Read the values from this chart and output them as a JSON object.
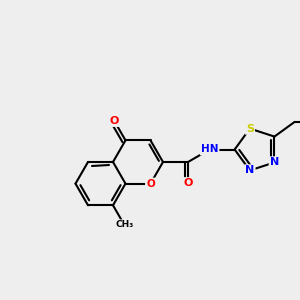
{
  "bg_color": "#f0f0f0",
  "atom_colors": {
    "C": "#000000",
    "O": "#ff0000",
    "N": "#0000ff",
    "S": "#cccc00",
    "H": "#5f9ea0"
  },
  "figsize": [
    3.0,
    3.0
  ],
  "dpi": 100
}
